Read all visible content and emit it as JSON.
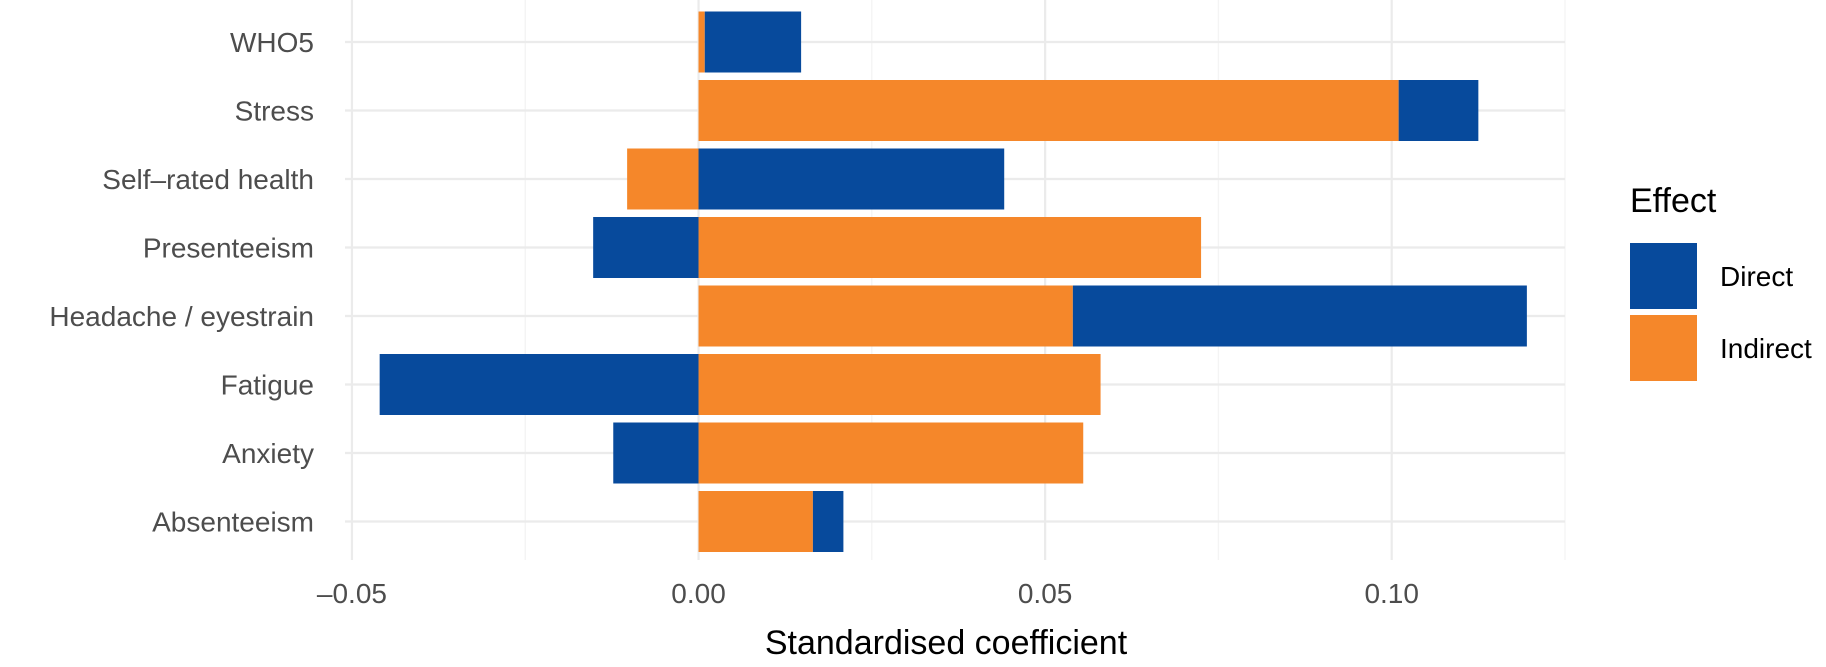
{
  "chart_data": {
    "type": "bar",
    "orientation": "horizontal",
    "stacking": "diverging",
    "categories": [
      "WHO5",
      "Stress",
      "Self–rated health",
      "Presenteeism",
      "Headache / eyestrain",
      "Fatigue",
      "Anxiety",
      "Absenteeism"
    ],
    "series": [
      {
        "name": "Indirect",
        "color": "#F5872A",
        "values": [
          0.0009,
          0.101,
          -0.0103,
          0.0725,
          0.054,
          0.058,
          0.0555,
          0.0165
        ]
      },
      {
        "name": "Direct",
        "color": "#074A9C",
        "values": [
          0.0139,
          0.0115,
          0.0441,
          -0.0152,
          0.0655,
          -0.046,
          -0.0123,
          0.0044
        ]
      }
    ],
    "xlabel": "Standardised coefficient",
    "ylabel": "",
    "xlim": [
      -0.051,
      0.125
    ],
    "xticks": [
      -0.05,
      0.0,
      0.05,
      0.1
    ],
    "xtick_labels": [
      "–0.05",
      "0.00",
      "0.05",
      "0.10"
    ],
    "grid": true,
    "legend": {
      "title": "Effect",
      "position": "right",
      "items": [
        {
          "label": "Direct",
          "color": "#074A9C"
        },
        {
          "label": "Indirect",
          "color": "#F5872A"
        }
      ]
    }
  }
}
